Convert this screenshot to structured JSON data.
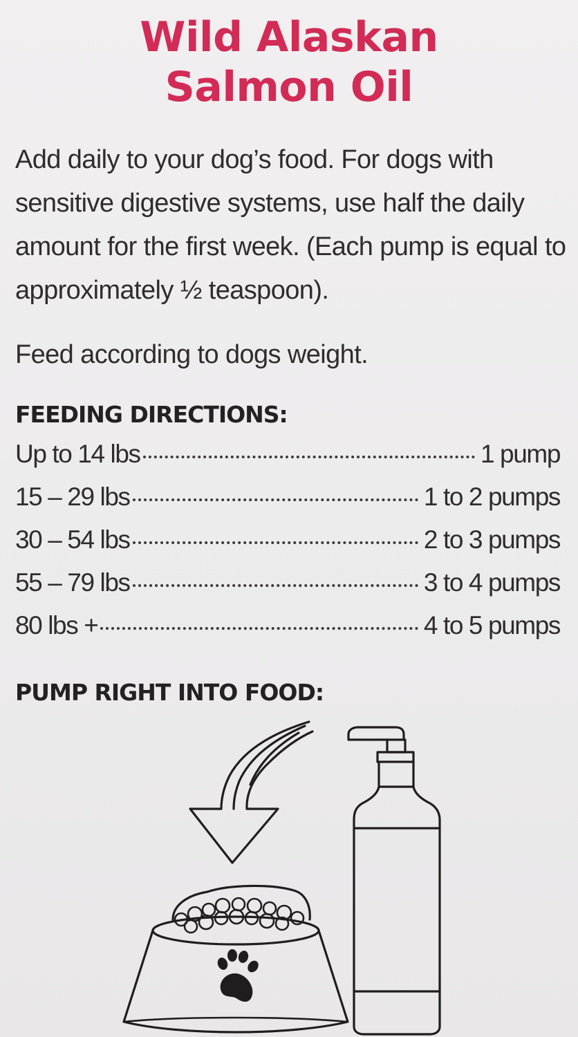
{
  "title": {
    "line1": "Wild Alaskan",
    "line2": "Salmon Oil",
    "color": "#d22b56"
  },
  "intro": {
    "line1": "Add daily to your dog’s food. For dogs with",
    "line2": "sensitive digestive systems, use half the daily",
    "line3": "amount for the first week. (Each pump is equal to",
    "line4": "approximately ½ teaspoon)."
  },
  "weight_note": "Feed according to dogs weight.",
  "feeding": {
    "heading": "FEEDING DIRECTIONS:",
    "rows": [
      {
        "weight": "Up to 14 lbs",
        "amount": "1 pump"
      },
      {
        "weight": "15 – 29 lbs",
        "amount": "1 to 2 pumps"
      },
      {
        "weight": "30 – 54 lbs",
        "amount": "2 to 3 pumps"
      },
      {
        "weight": "55 – 79 lbs",
        "amount": "3 to 4 pumps"
      },
      {
        "weight": "80 lbs +",
        "amount": "4 to 5 pumps"
      }
    ]
  },
  "pump_heading": "PUMP RIGHT INTO FOOD:",
  "illustration": {
    "icons": [
      "curved-arrow-icon",
      "food-bowl-icon",
      "paw-print-icon",
      "pump-bottle-icon"
    ]
  }
}
